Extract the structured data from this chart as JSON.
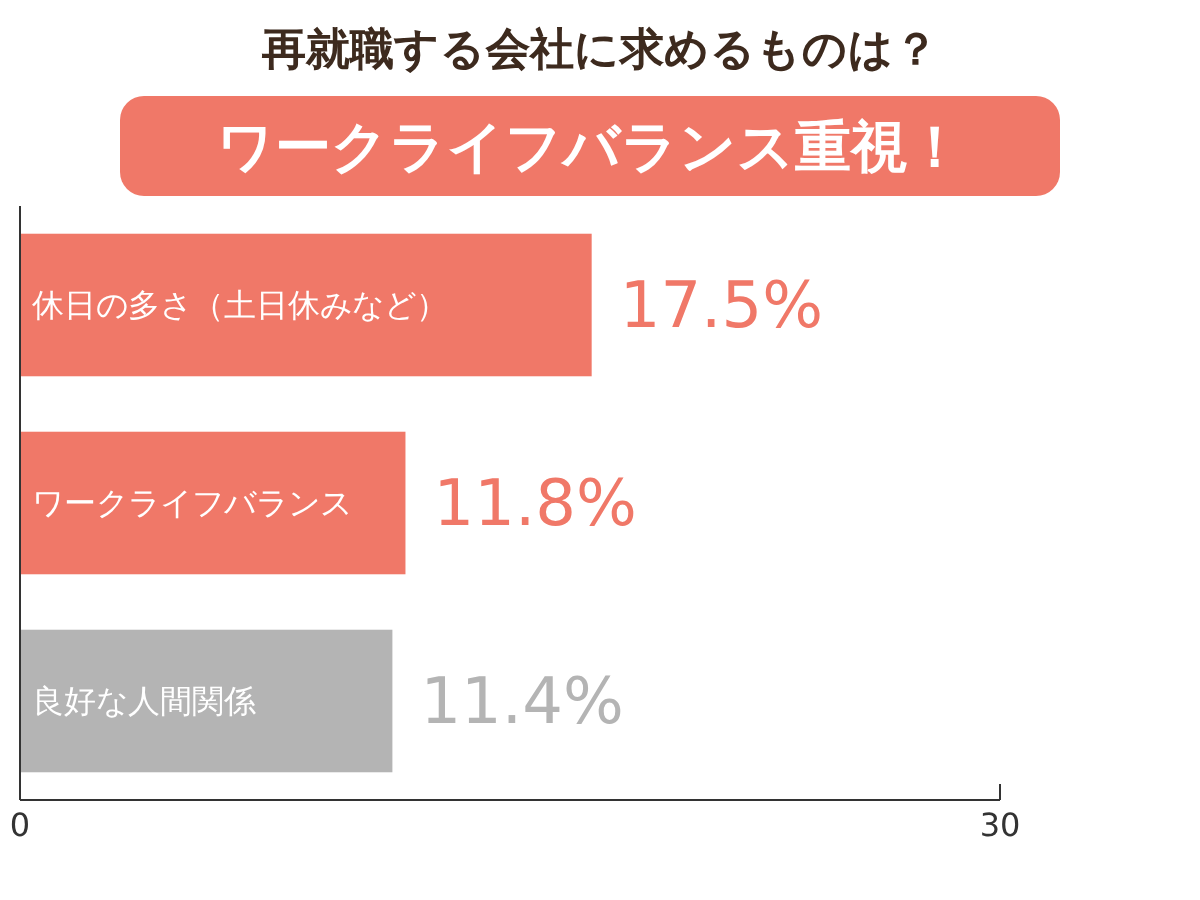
{
  "chart_data": {
    "type": "bar",
    "orientation": "horizontal",
    "title": "再就職する会社に求めるものは？",
    "subtitle": "ワークライフバランス重視！",
    "categories": [
      "休日の多さ（土日休みなど）",
      "ワークライフバランス",
      "良好な人間関係"
    ],
    "values": [
      17.5,
      11.8,
      11.4
    ],
    "value_labels": [
      "17.5%",
      "11.8%",
      "11.4%"
    ],
    "colors": [
      "#f07868",
      "#f07868",
      "#b4b4b4"
    ],
    "xlim": [
      0,
      30
    ],
    "xticks": [
      0,
      30
    ],
    "grid": false
  }
}
